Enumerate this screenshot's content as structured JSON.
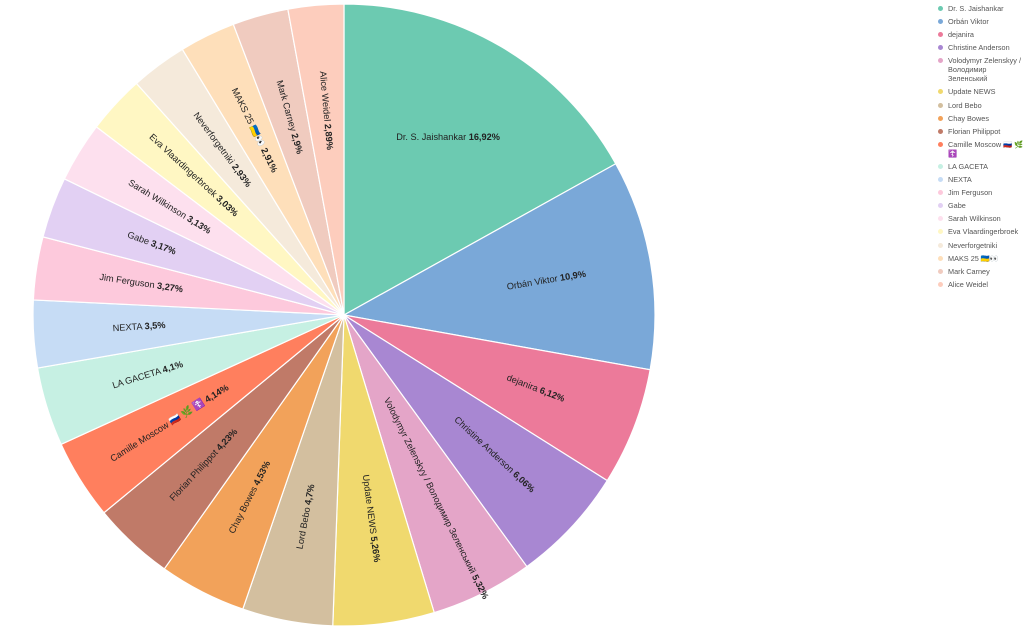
{
  "chart_data": {
    "type": "pie",
    "start_angle": 0,
    "direction": "clockwise",
    "legend_placement": "right",
    "slices": [
      {
        "label": "Dr. S. Jaishankar",
        "value": 16.92,
        "value_label": "16,92%",
        "color": "#6ccab1"
      },
      {
        "label": "Orbán Viktor",
        "value": 10.9,
        "value_label": "10,9%",
        "color": "#7aa8d8"
      },
      {
        "label": "dejanira",
        "value": 6.12,
        "value_label": "6,12%",
        "color": "#ec7a9a"
      },
      {
        "label": "Christine Anderson",
        "value": 6.06,
        "value_label": "6,06%",
        "color": "#a887d2"
      },
      {
        "label": "Volodymyr Zelenskyy / Володимир Зеленський",
        "value": 5.32,
        "value_label": "5,32%",
        "color": "#e4a5c8"
      },
      {
        "label": "Update NEWS",
        "value": 5.26,
        "value_label": "5,26%",
        "color": "#f0d96e"
      },
      {
        "label": "Lord Bebo",
        "value": 4.7,
        "value_label": "4,7%",
        "color": "#d3bf9f"
      },
      {
        "label": "Chay Bowes",
        "value": 4.53,
        "value_label": "4,53%",
        "color": "#f2a25a"
      },
      {
        "label": "Florian Philippot",
        "value": 4.23,
        "value_label": "4,23%",
        "color": "#c07a68"
      },
      {
        "label": "Camille Moscow 🇷🇺 🌿 ☦️",
        "value": 4.14,
        "value_label": "4,14%",
        "color": "#ff7f5e"
      },
      {
        "label": "LA GACETA",
        "value": 4.1,
        "value_label": "4,1%",
        "color": "#c6f0e3"
      },
      {
        "label": "NEXTA",
        "value": 3.5,
        "value_label": "3,5%",
        "color": "#c6dcf5"
      },
      {
        "label": "Jim Ferguson",
        "value": 3.27,
        "value_label": "3,27%",
        "color": "#fdc9dc"
      },
      {
        "label": "Gabe",
        "value": 3.17,
        "value_label": "3,17%",
        "color": "#e2d0f3"
      },
      {
        "label": "Sarah Wilkinson",
        "value": 3.13,
        "value_label": "3,13%",
        "color": "#fde0ee"
      },
      {
        "label": "Eva Vlaardingerbroek",
        "value": 3.03,
        "value_label": "3,03%",
        "color": "#fff7c3"
      },
      {
        "label": "Neverforgetniki",
        "value": 2.93,
        "value_label": "2,93%",
        "color": "#f5eadb"
      },
      {
        "label": "MAKS 25 🇺🇦👀",
        "value": 2.91,
        "value_label": "2,91%",
        "color": "#fedfba"
      },
      {
        "label": "Mark Carney",
        "value": 2.9,
        "value_label": "2,9%",
        "color": "#f0cbbf"
      },
      {
        "label": "Alice Weidel",
        "value": 2.89,
        "value_label": "2,89%",
        "color": "#fdcdbd"
      }
    ]
  }
}
